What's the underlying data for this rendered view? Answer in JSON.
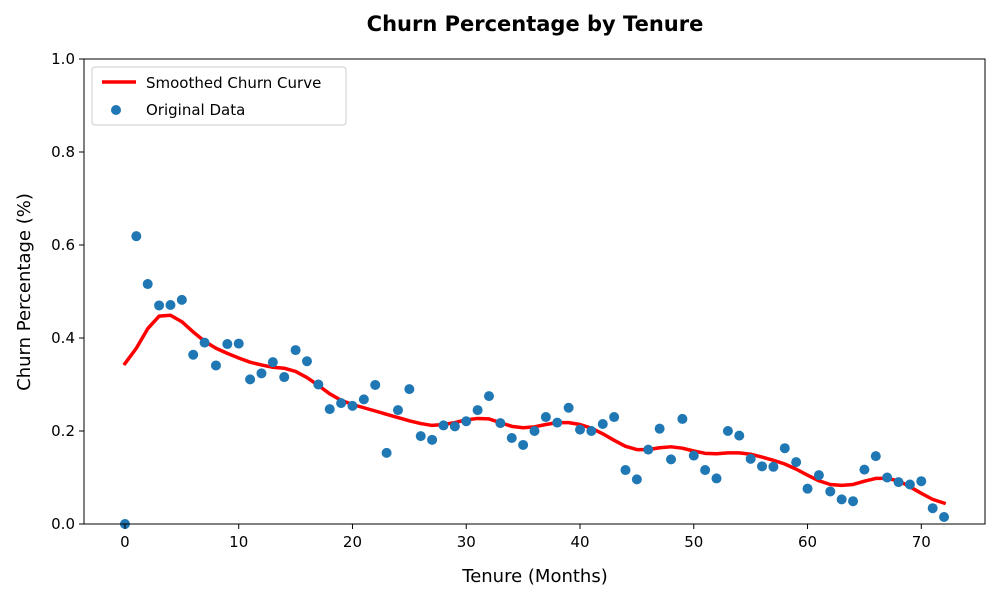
{
  "chart_data": {
    "type": "scatter",
    "title": "Churn Percentage by Tenure",
    "xlabel": "Tenure (Months)",
    "ylabel": "Churn Percentage (%)",
    "xlim": [
      -3.6,
      75.6
    ],
    "ylim": [
      0,
      1.0
    ],
    "x_ticks": [
      0,
      10,
      20,
      30,
      40,
      50,
      60,
      70
    ],
    "y_ticks": [
      0.0,
      0.2,
      0.4,
      0.6,
      0.8,
      1.0
    ],
    "x_tick_labels": [
      "0",
      "10",
      "20",
      "30",
      "40",
      "50",
      "60",
      "70"
    ],
    "y_tick_labels": [
      "0.0",
      "0.2",
      "0.4",
      "0.6",
      "0.8",
      "1.0"
    ],
    "grid": false,
    "legend_position": "top-left",
    "series": [
      {
        "name": "Smoothed Churn Curve",
        "kind": "line",
        "color": "#ff0000",
        "x": [
          0,
          1,
          2,
          3,
          4,
          5,
          6,
          7,
          8,
          9,
          10,
          11,
          12,
          13,
          14,
          15,
          16,
          17,
          18,
          19,
          20,
          21,
          22,
          23,
          24,
          25,
          26,
          27,
          28,
          29,
          30,
          31,
          32,
          33,
          34,
          35,
          36,
          37,
          38,
          39,
          40,
          41,
          42,
          43,
          44,
          45,
          46,
          47,
          48,
          49,
          50,
          51,
          52,
          53,
          54,
          55,
          56,
          57,
          58,
          59,
          60,
          61,
          62,
          63,
          64,
          65,
          66,
          67,
          68,
          69,
          70,
          71,
          72
        ],
        "y": [
          0.345,
          0.378,
          0.42,
          0.447,
          0.449,
          0.435,
          0.413,
          0.393,
          0.378,
          0.367,
          0.357,
          0.348,
          0.342,
          0.337,
          0.335,
          0.328,
          0.315,
          0.298,
          0.28,
          0.266,
          0.257,
          0.25,
          0.243,
          0.236,
          0.229,
          0.222,
          0.216,
          0.212,
          0.214,
          0.218,
          0.224,
          0.227,
          0.226,
          0.218,
          0.21,
          0.207,
          0.209,
          0.214,
          0.218,
          0.218,
          0.214,
          0.206,
          0.194,
          0.18,
          0.167,
          0.16,
          0.16,
          0.164,
          0.166,
          0.163,
          0.157,
          0.152,
          0.151,
          0.153,
          0.153,
          0.15,
          0.144,
          0.137,
          0.129,
          0.118,
          0.105,
          0.093,
          0.085,
          0.083,
          0.085,
          0.092,
          0.098,
          0.098,
          0.093,
          0.08,
          0.066,
          0.053,
          0.045
        ]
      },
      {
        "name": "Original Data",
        "kind": "scatter",
        "color": "#1f77b4",
        "x": [
          0,
          1,
          2,
          3,
          4,
          5,
          6,
          7,
          8,
          9,
          10,
          11,
          12,
          13,
          14,
          15,
          16,
          17,
          18,
          19,
          20,
          21,
          22,
          23,
          24,
          25,
          26,
          27,
          28,
          29,
          30,
          31,
          32,
          33,
          34,
          35,
          36,
          37,
          38,
          39,
          40,
          41,
          42,
          43,
          44,
          45,
          46,
          47,
          48,
          49,
          50,
          51,
          52,
          53,
          54,
          55,
          56,
          57,
          58,
          59,
          60,
          61,
          62,
          63,
          64,
          65,
          66,
          67,
          68,
          69,
          70,
          71,
          72
        ],
        "y": [
          0.0,
          0.619,
          0.516,
          0.47,
          0.471,
          0.482,
          0.364,
          0.39,
          0.341,
          0.387,
          0.388,
          0.311,
          0.324,
          0.348,
          0.316,
          0.374,
          0.35,
          0.3,
          0.247,
          0.26,
          0.254,
          0.268,
          0.299,
          0.153,
          0.245,
          0.29,
          0.189,
          0.181,
          0.212,
          0.21,
          0.221,
          0.245,
          0.275,
          0.217,
          0.185,
          0.17,
          0.2,
          0.23,
          0.218,
          0.25,
          0.203,
          0.2,
          0.215,
          0.23,
          0.116,
          0.096,
          0.16,
          0.205,
          0.139,
          0.226,
          0.147,
          0.116,
          0.098,
          0.2,
          0.19,
          0.14,
          0.124,
          0.123,
          0.163,
          0.133,
          0.076,
          0.105,
          0.07,
          0.053,
          0.049,
          0.117,
          0.146,
          0.1,
          0.09,
          0.085,
          0.092,
          0.034,
          0.015
        ]
      }
    ]
  }
}
